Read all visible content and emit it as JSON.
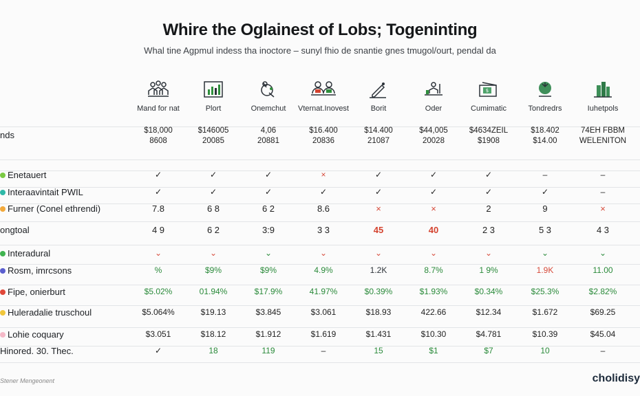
{
  "header": {
    "title": "Whire the Oglainest of Lobs; Togeninting",
    "subtitle": "Whal tine Agpmul indess tha inoctore – sunyl fhio de snantie gnes tmugol/ourt, pendal da"
  },
  "columns": [
    {
      "label": "Mand for nat",
      "icon": "people-group-icon"
    },
    {
      "label": "Plort",
      "icon": "bar-chart-icon"
    },
    {
      "label": "Onemchut",
      "icon": "tool-icon"
    },
    {
      "label": "Vternat.Inovest",
      "icon": "team-meeting-icon"
    },
    {
      "label": "Borit",
      "icon": "pen-icon"
    },
    {
      "label": "Oder",
      "icon": "person-desk-icon"
    },
    {
      "label": "Cumimatic",
      "icon": "money-card-icon"
    },
    {
      "label": "Tondredrs",
      "icon": "plant-icon"
    },
    {
      "label": "Iuhetpols",
      "icon": "buildings-icon"
    }
  ],
  "rows": [
    {
      "label": "nds",
      "dot": "",
      "cells": [
        "$18,000\n8608",
        "$146005\n20085",
        "4,06\n20881",
        "$16.400\n20836",
        "$14.400\n21087",
        "$44,005\n20028",
        "$4634ZEIL\n$1908",
        "$18.402\n$14.00",
        "74EH FBBM\nWELENITON"
      ]
    },
    {
      "label": "Enetauert",
      "dot": "#7ac943",
      "cells": [
        "✓",
        "✓",
        "✓",
        "×",
        "✓",
        "✓",
        "✓",
        "–",
        "–"
      ]
    },
    {
      "label": "Interaavintait PWIL",
      "dot": "#2fb9a8",
      "cells": [
        "✓",
        "✓",
        "✓",
        "✓",
        "✓",
        "✓",
        "✓",
        "✓",
        "–"
      ]
    },
    {
      "label": "Furner (Conel ethrendi)",
      "dot": "#f2a93b",
      "cells": [
        "7.8",
        "6 8",
        "6 2",
        "8.6",
        "×",
        "×",
        "2",
        "9",
        "×"
      ]
    },
    {
      "label": "ongtoal",
      "dot": "",
      "cells": [
        "4 9",
        "6 2",
        "3:9",
        "3 3",
        "45",
        "40",
        "2 3",
        "5 3",
        "4 3"
      ]
    },
    {
      "label": "Interadural",
      "dot": "#3fb34f",
      "cells": [
        "⌄",
        "⌄",
        "⌄",
        "⌄",
        "⌄",
        "⌄",
        "⌄",
        "⌄",
        "⌄"
      ]
    },
    {
      "label": "Rosm, imrcsons",
      "dot": "#5b5fcf",
      "cells": [
        "%",
        "$9%",
        "$9%",
        "4.9%",
        "1.2K",
        "8.7%",
        "1 9%",
        "1.9K",
        "11.00"
      ]
    },
    {
      "label": "Fipe, onierburt",
      "dot": "#e0483a",
      "cells": [
        "$5.02%",
        "01.94%",
        "$17.9%",
        "41.97%",
        "$0.39%",
        "$1.93%",
        "$0.34%",
        "$25.3%",
        "$2.82%"
      ]
    },
    {
      "label": "Huleradalie truschoul",
      "dot": "#f0c63a",
      "cells": [
        "$5.064%",
        "$19.13",
        "$3.845",
        "$3.061",
        "$18.93",
        "422.66",
        "$12.34",
        "$1.672",
        "$69.25"
      ]
    },
    {
      "label": "Lohie coquary",
      "dot": "#f5b9c8",
      "cells": [
        "$3.051",
        "$18.12",
        "$1.912",
        "$1.619",
        "$1.431",
        "$10.30",
        "$4.781",
        "$10.39",
        "$45.04"
      ]
    },
    {
      "label": "Hinored. 30. Thec.",
      "dot": "",
      "cells": [
        "✓",
        "18",
        "119",
        "–",
        "15",
        "$1",
        "$7",
        "10",
        "–"
      ]
    }
  ],
  "footer": {
    "note": "Stener Mengeonent",
    "brand": "cholidisy"
  },
  "colors": {
    "green": "#2a8a3a",
    "red": "#d64a3a",
    "rule": "#e2e4e7"
  }
}
